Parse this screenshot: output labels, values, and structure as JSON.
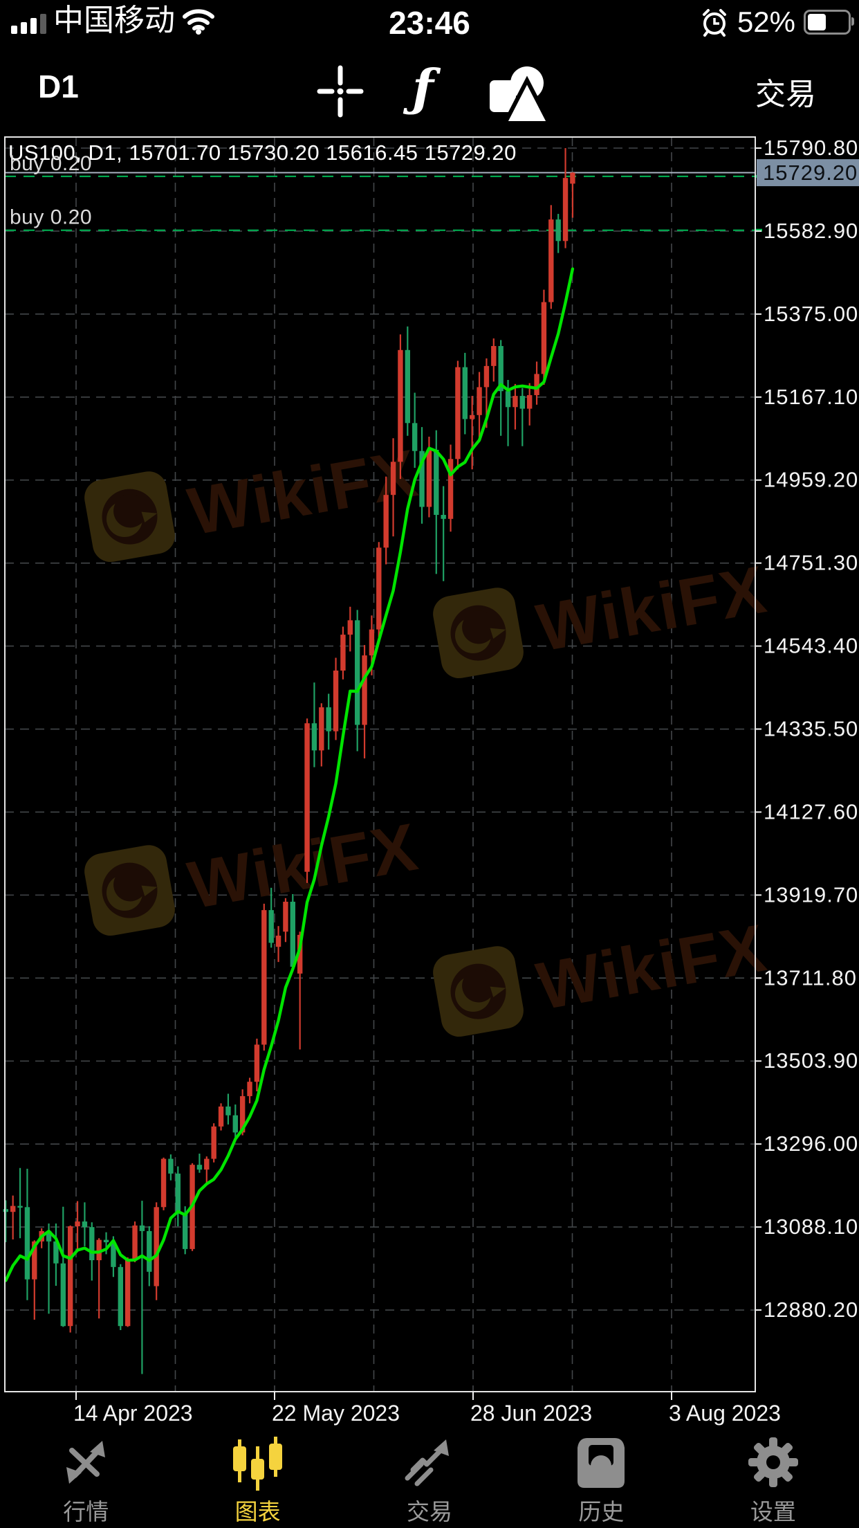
{
  "status_bar": {
    "carrier": "中国移动",
    "time": "23:46",
    "battery": "52%"
  },
  "toolbar": {
    "timeframe": "D1",
    "function_icon": "ƒ",
    "trade": "交易"
  },
  "chart": {
    "header": "US100, D1, 15701.70 15730.20 15616.45 15729.20",
    "watermark": "WikiFX",
    "current_price_label": "15729.20",
    "positions": [
      {
        "label": "buy 0.20",
        "price": 15720.0
      },
      {
        "label": "buy 0.20",
        "price": 15585.0
      }
    ]
  },
  "chart_data": {
    "type": "candlestick",
    "symbol": "US100",
    "timeframe": "D1",
    "last_bar": {
      "open": 15701.7,
      "high": 15730.2,
      "low": 15616.45,
      "close": 15729.2
    },
    "current_price": 15729.2,
    "colors": {
      "up": "#d23b2e",
      "down": "#1fa164",
      "ma": "#00e400",
      "grid": "#43474a"
    },
    "ma": {
      "period": 7
    },
    "y_axis": {
      "min": 12880.2,
      "step": 207.9,
      "labels": [
        "15790.80",
        "15582.90",
        "15375.00",
        "15167.10",
        "14959.20",
        "14751.30",
        "14543.40",
        "14335.50",
        "14127.60",
        "13919.70",
        "13711.80",
        "13503.90",
        "13296.00",
        "13088.10",
        "12880.20"
      ]
    },
    "x_axis": {
      "tick_labels": [
        "14 Apr 2023",
        "22 May 2023",
        "28 Jun 2023",
        "3 Aug 2023"
      ]
    },
    "ohlc": [
      [
        13133,
        13155,
        13050,
        13126
      ],
      [
        13126,
        13167,
        13057,
        13141
      ],
      [
        13141,
        13236,
        13060,
        13138
      ],
      [
        13138,
        13234,
        12905,
        12957
      ],
      [
        12957,
        13055,
        12856,
        13052
      ],
      [
        13052,
        13085,
        13035,
        13078
      ],
      [
        13078,
        13097,
        12871,
        13052
      ],
      [
        13052,
        13097,
        12941,
        12997
      ],
      [
        12997,
        13139,
        12838,
        12840
      ],
      [
        12840,
        13092,
        12824,
        13090
      ],
      [
        13090,
        13153,
        13026,
        13102
      ],
      [
        13102,
        13150,
        13040,
        13088
      ],
      [
        13088,
        13100,
        12954,
        13005
      ],
      [
        13005,
        13060,
        12859,
        13056
      ],
      [
        13056,
        13075,
        13020,
        13050
      ],
      [
        13050,
        13065,
        12963,
        12988
      ],
      [
        12988,
        12995,
        12830,
        12840
      ],
      [
        12840,
        13012,
        12838,
        13008
      ],
      [
        13008,
        13102,
        13000,
        13092
      ],
      [
        13092,
        13154,
        12720,
        13078
      ],
      [
        13078,
        13090,
        12940,
        12976
      ],
      [
        12940,
        13150,
        12905,
        13138
      ],
      [
        13138,
        13262,
        13130,
        13259
      ],
      [
        13259,
        13270,
        13205,
        13222
      ],
      [
        13222,
        13240,
        13090,
        13124
      ],
      [
        13124,
        13140,
        13020,
        13033
      ],
      [
        13033,
        13248,
        13028,
        13244
      ],
      [
        13244,
        13272,
        13224,
        13232
      ],
      [
        13232,
        13265,
        13196,
        13259
      ],
      [
        13259,
        13348,
        13250,
        13340
      ],
      [
        13340,
        13398,
        13330,
        13390
      ],
      [
        13390,
        13422,
        13345,
        13368
      ],
      [
        13368,
        13395,
        13308,
        13325
      ],
      [
        13325,
        13433,
        13318,
        13416
      ],
      [
        13416,
        13462,
        13398,
        13452
      ],
      [
        13452,
        13560,
        13428,
        13545
      ],
      [
        13545,
        13898,
        13530,
        13882
      ],
      [
        13882,
        13938,
        13788,
        13800
      ],
      [
        13790,
        13842,
        13752,
        13818
      ],
      [
        13828,
        13912,
        13802,
        13903
      ],
      [
        13903,
        13922,
        13728,
        13740
      ],
      [
        13723,
        13828,
        13533,
        13820
      ],
      [
        13978,
        14362,
        13950,
        14350
      ],
      [
        14350,
        14452,
        14240,
        14282
      ],
      [
        14282,
        14400,
        14242,
        14390
      ],
      [
        14390,
        14424,
        14284,
        14330
      ],
      [
        14330,
        14514,
        14308,
        14482
      ],
      [
        14482,
        14592,
        14460,
        14572
      ],
      [
        14572,
        14642,
        14530,
        14608
      ],
      [
        14608,
        14634,
        14280,
        14346
      ],
      [
        14346,
        14546,
        14262,
        14520
      ],
      [
        14520,
        14620,
        14470,
        14585
      ],
      [
        14585,
        14804,
        14565,
        14790
      ],
      [
        14790,
        14968,
        14748,
        14922
      ],
      [
        14922,
        15064,
        14818,
        15005
      ],
      [
        15005,
        15324,
        14962,
        15285
      ],
      [
        15285,
        15344,
        15070,
        15102
      ],
      [
        15102,
        15178,
        14990,
        15032
      ],
      [
        15032,
        15092,
        14850,
        14892
      ],
      [
        14892,
        15068,
        14866,
        15035
      ],
      [
        15035,
        15084,
        14724,
        14872
      ],
      [
        14872,
        14944,
        14706,
        14862
      ],
      [
        14862,
        15048,
        14830,
        15012
      ],
      [
        15012,
        15258,
        14986,
        15242
      ],
      [
        15242,
        15278,
        15074,
        15112
      ],
      [
        15112,
        15170,
        14986,
        15122
      ],
      [
        15122,
        15230,
        15060,
        15192
      ],
      [
        15192,
        15264,
        15090,
        15245
      ],
      [
        15245,
        15314,
        15206,
        15295
      ],
      [
        15295,
        15310,
        15070,
        15182
      ],
      [
        15182,
        15210,
        15044,
        15142
      ],
      [
        15142,
        15200,
        15086,
        15170
      ],
      [
        15170,
        15190,
        15044,
        15138
      ],
      [
        15138,
        15202,
        15096,
        15172
      ],
      [
        15172,
        15256,
        15148,
        15225
      ],
      [
        15225,
        15436,
        15198,
        15405
      ],
      [
        15405,
        15648,
        15388,
        15612
      ],
      [
        15612,
        15626,
        15528,
        15558
      ],
      [
        15558,
        15790.8,
        15540,
        15716
      ],
      [
        15701.7,
        15730.2,
        15616.45,
        15729.2
      ]
    ]
  },
  "tab_bar": {
    "items": [
      {
        "label": "行情",
        "active": false
      },
      {
        "label": "图表",
        "active": true
      },
      {
        "label": "交易",
        "active": false
      },
      {
        "label": "历史",
        "active": false
      },
      {
        "label": "设置",
        "active": false
      }
    ]
  }
}
